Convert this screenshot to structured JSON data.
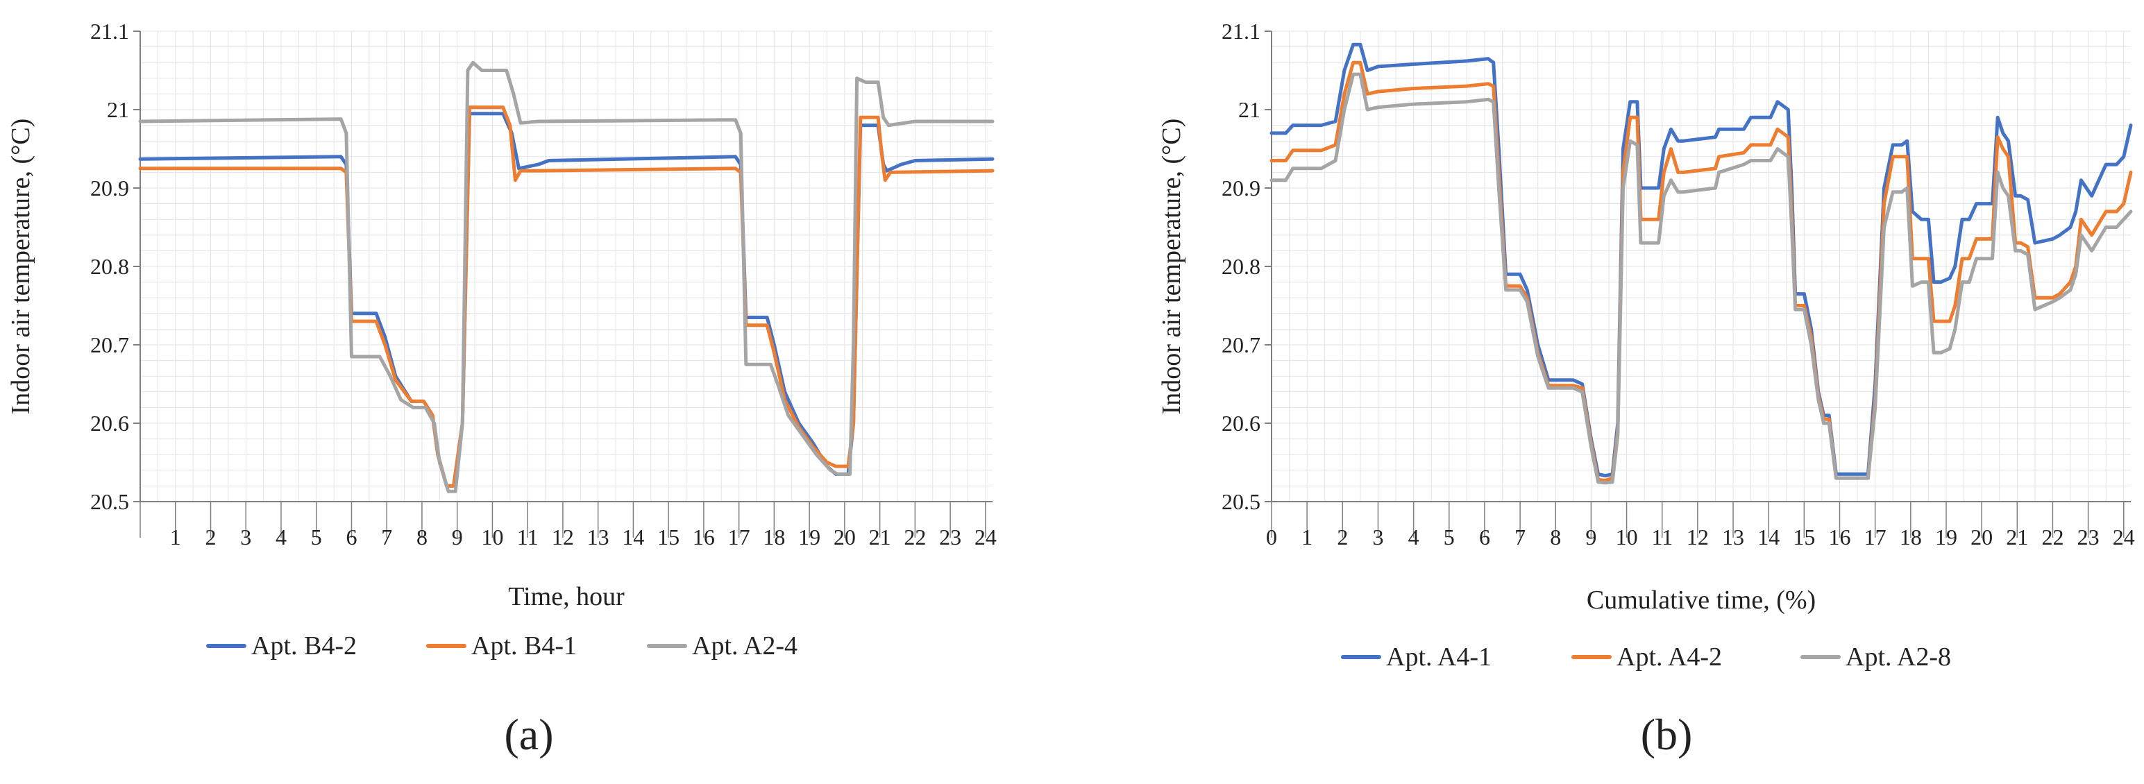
{
  "colors": {
    "blue": "#4472C4",
    "orange": "#ED7D31",
    "gray": "#A5A5A5",
    "grid": "#E3E3E3",
    "axis": "#7F7F7F",
    "text": "#222222"
  },
  "chart_data": [
    {
      "type": "line",
      "panel_label": "(a)",
      "title": "",
      "xlabel": "Time, hour",
      "ylabel": "Indoor air temperature, (°C)",
      "xlim": [
        0,
        24.2
      ],
      "ylim": [
        20.5,
        21.1
      ],
      "yticks": [
        20.5,
        20.6,
        20.7,
        20.8,
        20.9,
        21,
        21.1
      ],
      "yticklabels": [
        "20.5",
        "20.6",
        "20.7",
        "20.8",
        "20.9",
        "21",
        "21.1"
      ],
      "xticks": [
        1,
        2,
        3,
        4,
        5,
        6,
        7,
        8,
        9,
        10,
        11,
        12,
        13,
        14,
        15,
        16,
        17,
        18,
        19,
        20,
        21,
        22,
        23,
        24
      ],
      "xticklabels": [
        "1",
        "2",
        "3",
        "4",
        "5",
        "6",
        "7",
        "8",
        "9",
        "10",
        "11",
        "12",
        "13",
        "14",
        "15",
        "16",
        "17",
        "18",
        "19",
        "20",
        "21",
        "22",
        "23",
        "24"
      ],
      "grid": true,
      "legend": "bottom",
      "series": [
        {
          "name": "Apt. B4-2",
          "color_key": "blue",
          "x": [
            0,
            5.7,
            5.85,
            6.0,
            6.7,
            6.95,
            7.25,
            7.7,
            8.05,
            8.3,
            8.45,
            8.7,
            8.9,
            9.15,
            9.35,
            10.3,
            10.55,
            10.75,
            11.3,
            11.6,
            16.9,
            17.05,
            17.2,
            17.8,
            18.0,
            18.3,
            18.7,
            19.1,
            19.5,
            19.75,
            20.1,
            20.25,
            20.45,
            20.95,
            21.1,
            21.2,
            21.6,
            22.0,
            24.2
          ],
          "y": [
            20.937,
            20.94,
            20.93,
            20.74,
            20.74,
            20.71,
            20.66,
            20.628,
            20.628,
            20.61,
            20.56,
            20.52,
            20.52,
            20.6,
            20.995,
            20.995,
            20.97,
            20.925,
            20.93,
            20.935,
            20.94,
            20.93,
            20.735,
            20.735,
            20.7,
            20.64,
            20.6,
            20.575,
            20.545,
            20.535,
            20.535,
            20.6,
            20.98,
            20.98,
            20.93,
            20.922,
            20.93,
            20.935,
            20.937
          ]
        },
        {
          "name": "Apt. B4-1",
          "color_key": "orange",
          "x": [
            0,
            5.7,
            5.85,
            6.0,
            6.7,
            6.95,
            7.25,
            7.7,
            8.05,
            8.3,
            8.45,
            8.7,
            8.9,
            9.15,
            9.35,
            10.3,
            10.5,
            10.65,
            10.8,
            11.3,
            16.9,
            17.05,
            17.2,
            17.8,
            18.0,
            18.3,
            18.7,
            19.1,
            19.5,
            19.75,
            20.1,
            20.25,
            20.45,
            20.95,
            21.05,
            21.15,
            21.3,
            24.2
          ],
          "y": [
            20.925,
            20.925,
            20.92,
            20.73,
            20.73,
            20.7,
            20.655,
            20.628,
            20.628,
            20.61,
            20.56,
            20.52,
            20.52,
            20.6,
            21.003,
            21.003,
            20.98,
            20.91,
            20.922,
            20.922,
            20.925,
            20.92,
            20.725,
            20.725,
            20.69,
            20.63,
            20.595,
            20.57,
            20.55,
            20.545,
            20.545,
            20.6,
            20.99,
            20.99,
            20.945,
            20.91,
            20.92,
            20.922
          ]
        },
        {
          "name": "Apt. A2-4",
          "color_key": "gray",
          "x": [
            0,
            5.7,
            5.85,
            6.0,
            6.8,
            7.1,
            7.4,
            7.75,
            8.1,
            8.35,
            8.5,
            8.75,
            8.95,
            9.15,
            9.3,
            9.45,
            9.7,
            10.4,
            10.6,
            10.8,
            11.3,
            16.9,
            17.05,
            17.2,
            17.9,
            18.1,
            18.4,
            18.8,
            19.2,
            19.6,
            19.8,
            20.15,
            20.25,
            20.35,
            20.6,
            20.95,
            21.1,
            21.25,
            22.0,
            24.2
          ],
          "y": [
            20.985,
            20.988,
            20.97,
            20.685,
            20.685,
            20.66,
            20.63,
            20.62,
            20.62,
            20.6,
            20.55,
            20.513,
            20.513,
            20.6,
            21.05,
            21.06,
            21.05,
            21.05,
            21.02,
            20.983,
            20.985,
            20.987,
            20.97,
            20.675,
            20.675,
            20.65,
            20.61,
            20.585,
            20.56,
            20.54,
            20.535,
            20.535,
            20.7,
            21.04,
            21.035,
            21.035,
            20.99,
            20.98,
            20.985,
            20.985
          ]
        }
      ]
    },
    {
      "type": "line",
      "panel_label": "(b)",
      "title": "",
      "xlabel": "Cumulative time, (%)",
      "ylabel": "Indoor air temperature, (°C)",
      "xlim": [
        0,
        24.2
      ],
      "ylim": [
        20.5,
        21.1
      ],
      "yticks": [
        20.5,
        20.6,
        20.7,
        20.8,
        20.9,
        21,
        21.1
      ],
      "yticklabels": [
        "20.5",
        "20.6",
        "20.7",
        "20.8",
        "20.9",
        "21",
        "21.1"
      ],
      "xticks": [
        0,
        1,
        2,
        3,
        4,
        5,
        6,
        7,
        8,
        9,
        10,
        11,
        12,
        13,
        14,
        15,
        16,
        17,
        18,
        19,
        20,
        21,
        22,
        23,
        24
      ],
      "xticklabels": [
        "0",
        "1",
        "2",
        "3",
        "4",
        "5",
        "6",
        "7",
        "8",
        "9",
        "10",
        "11",
        "12",
        "13",
        "14",
        "15",
        "16",
        "17",
        "18",
        "19",
        "20",
        "21",
        "22",
        "23",
        "24"
      ],
      "grid": true,
      "legend": "bottom",
      "series": [
        {
          "name": "Apt. A4-1",
          "color_key": "blue",
          "x": [
            0,
            0.4,
            0.6,
            1.4,
            1.8,
            2.05,
            2.3,
            2.5,
            2.7,
            3.0,
            4.0,
            5.5,
            6.1,
            6.25,
            6.4,
            6.6,
            7.0,
            7.2,
            7.5,
            7.8,
            8.5,
            8.75,
            9.0,
            9.2,
            9.4,
            9.6,
            9.75,
            9.9,
            10.1,
            10.3,
            10.4,
            10.9,
            11.05,
            11.25,
            11.45,
            11.6,
            12.5,
            12.6,
            13.3,
            13.5,
            14.05,
            14.25,
            14.4,
            14.55,
            14.65,
            14.75,
            15.0,
            15.2,
            15.4,
            15.55,
            15.7,
            15.9,
            16.1,
            16.8,
            17.0,
            17.25,
            17.5,
            17.75,
            17.9,
            18.05,
            18.3,
            18.5,
            18.65,
            18.85,
            19.1,
            19.25,
            19.45,
            19.65,
            19.85,
            20.15,
            20.3,
            20.45,
            20.6,
            20.75,
            20.95,
            21.1,
            21.3,
            21.5,
            22.0,
            22.2,
            22.5,
            22.65,
            22.8,
            23.1,
            23.5,
            23.8,
            24.0,
            24.2
          ],
          "y": [
            20.97,
            20.97,
            20.98,
            20.98,
            20.985,
            21.05,
            21.083,
            21.083,
            21.05,
            21.055,
            21.058,
            21.062,
            21.065,
            21.06,
            20.95,
            20.79,
            20.79,
            20.77,
            20.7,
            20.655,
            20.655,
            20.65,
            20.58,
            20.535,
            20.533,
            20.535,
            20.6,
            20.95,
            21.01,
            21.01,
            20.9,
            20.9,
            20.95,
            20.975,
            20.96,
            20.96,
            20.965,
            20.975,
            20.975,
            20.99,
            20.99,
            21.01,
            21.005,
            21.0,
            20.9,
            20.765,
            20.765,
            20.72,
            20.64,
            20.61,
            20.61,
            20.535,
            20.535,
            20.535,
            20.65,
            20.9,
            20.955,
            20.955,
            20.96,
            20.87,
            20.86,
            20.86,
            20.78,
            20.78,
            20.785,
            20.8,
            20.86,
            20.86,
            20.88,
            20.88,
            20.88,
            20.99,
            20.97,
            20.96,
            20.89,
            20.89,
            20.885,
            20.83,
            20.835,
            20.84,
            20.85,
            20.87,
            20.91,
            20.89,
            20.93,
            20.93,
            20.94,
            20.98
          ]
        },
        {
          "name": "Apt. A4-2",
          "color_key": "orange",
          "x": [
            0,
            0.4,
            0.6,
            1.4,
            1.8,
            2.05,
            2.3,
            2.5,
            2.7,
            3.0,
            4.0,
            5.5,
            6.1,
            6.25,
            6.4,
            6.6,
            7.0,
            7.2,
            7.5,
            7.8,
            8.5,
            8.75,
            9.0,
            9.2,
            9.4,
            9.6,
            9.75,
            9.9,
            10.1,
            10.3,
            10.4,
            10.9,
            11.05,
            11.25,
            11.45,
            11.6,
            12.5,
            12.6,
            13.3,
            13.5,
            14.05,
            14.25,
            14.4,
            14.55,
            14.65,
            14.75,
            15.0,
            15.2,
            15.4,
            15.55,
            15.7,
            15.9,
            16.1,
            16.8,
            17.0,
            17.25,
            17.5,
            17.75,
            17.9,
            18.05,
            18.3,
            18.5,
            18.65,
            18.85,
            19.1,
            19.25,
            19.45,
            19.65,
            19.85,
            20.15,
            20.3,
            20.45,
            20.6,
            20.75,
            20.95,
            21.1,
            21.3,
            21.5,
            22.0,
            22.2,
            22.5,
            22.65,
            22.8,
            23.1,
            23.5,
            23.8,
            24.0,
            24.2
          ],
          "y": [
            20.935,
            20.935,
            20.948,
            20.948,
            20.955,
            21.02,
            21.06,
            21.06,
            21.02,
            21.023,
            21.027,
            21.03,
            21.033,
            21.03,
            20.92,
            20.775,
            20.775,
            20.76,
            20.69,
            20.648,
            20.648,
            20.645,
            20.575,
            20.528,
            20.527,
            20.53,
            20.59,
            20.92,
            20.99,
            20.99,
            20.86,
            20.86,
            20.92,
            20.95,
            20.92,
            20.92,
            20.925,
            20.94,
            20.945,
            20.955,
            20.955,
            20.975,
            20.97,
            20.965,
            20.87,
            20.75,
            20.75,
            20.71,
            20.635,
            20.605,
            20.605,
            20.53,
            20.53,
            20.53,
            20.63,
            20.88,
            20.94,
            20.94,
            20.94,
            20.81,
            20.81,
            20.81,
            20.73,
            20.73,
            20.73,
            20.75,
            20.81,
            20.81,
            20.835,
            20.835,
            20.835,
            20.965,
            20.95,
            20.94,
            20.83,
            20.83,
            20.825,
            20.76,
            20.76,
            20.765,
            20.78,
            20.8,
            20.86,
            20.84,
            20.87,
            20.87,
            20.88,
            20.92
          ]
        },
        {
          "name": "Apt. A2-8",
          "color_key": "gray",
          "x": [
            0,
            0.4,
            0.6,
            1.4,
            1.8,
            2.05,
            2.3,
            2.5,
            2.7,
            3.0,
            4.0,
            5.5,
            6.1,
            6.25,
            6.4,
            6.6,
            7.0,
            7.2,
            7.5,
            7.8,
            8.5,
            8.75,
            9.0,
            9.2,
            9.4,
            9.6,
            9.75,
            9.9,
            10.1,
            10.3,
            10.4,
            10.9,
            11.05,
            11.25,
            11.45,
            11.6,
            12.5,
            12.6,
            13.3,
            13.5,
            14.05,
            14.25,
            14.4,
            14.55,
            14.65,
            14.75,
            15.0,
            15.2,
            15.4,
            15.55,
            15.7,
            15.9,
            16.1,
            16.8,
            17.0,
            17.25,
            17.5,
            17.75,
            17.9,
            18.05,
            18.3,
            18.5,
            18.65,
            18.85,
            19.1,
            19.25,
            19.45,
            19.65,
            19.85,
            20.15,
            20.3,
            20.45,
            20.6,
            20.75,
            20.95,
            21.1,
            21.3,
            21.5,
            22.0,
            22.2,
            22.5,
            22.65,
            22.8,
            23.1,
            23.5,
            23.8,
            24.0,
            24.2
          ],
          "y": [
            20.91,
            20.91,
            20.925,
            20.925,
            20.935,
            21.0,
            21.045,
            21.045,
            21.0,
            21.003,
            21.007,
            21.01,
            21.013,
            21.01,
            20.9,
            20.77,
            20.77,
            20.755,
            20.685,
            20.645,
            20.645,
            20.64,
            20.57,
            20.525,
            20.524,
            20.525,
            20.585,
            20.9,
            20.96,
            20.955,
            20.83,
            20.83,
            20.89,
            20.91,
            20.895,
            20.895,
            20.9,
            20.92,
            20.93,
            20.935,
            20.935,
            20.95,
            20.945,
            20.94,
            20.85,
            20.745,
            20.745,
            20.7,
            20.63,
            20.6,
            20.6,
            20.53,
            20.53,
            20.53,
            20.62,
            20.85,
            20.895,
            20.895,
            20.9,
            20.775,
            20.78,
            20.78,
            20.69,
            20.69,
            20.695,
            20.72,
            20.78,
            20.78,
            20.81,
            20.81,
            20.81,
            20.92,
            20.9,
            20.89,
            20.82,
            20.82,
            20.815,
            20.745,
            20.755,
            20.76,
            20.77,
            20.79,
            20.84,
            20.82,
            20.85,
            20.85,
            20.86,
            20.87
          ]
        }
      ]
    }
  ]
}
